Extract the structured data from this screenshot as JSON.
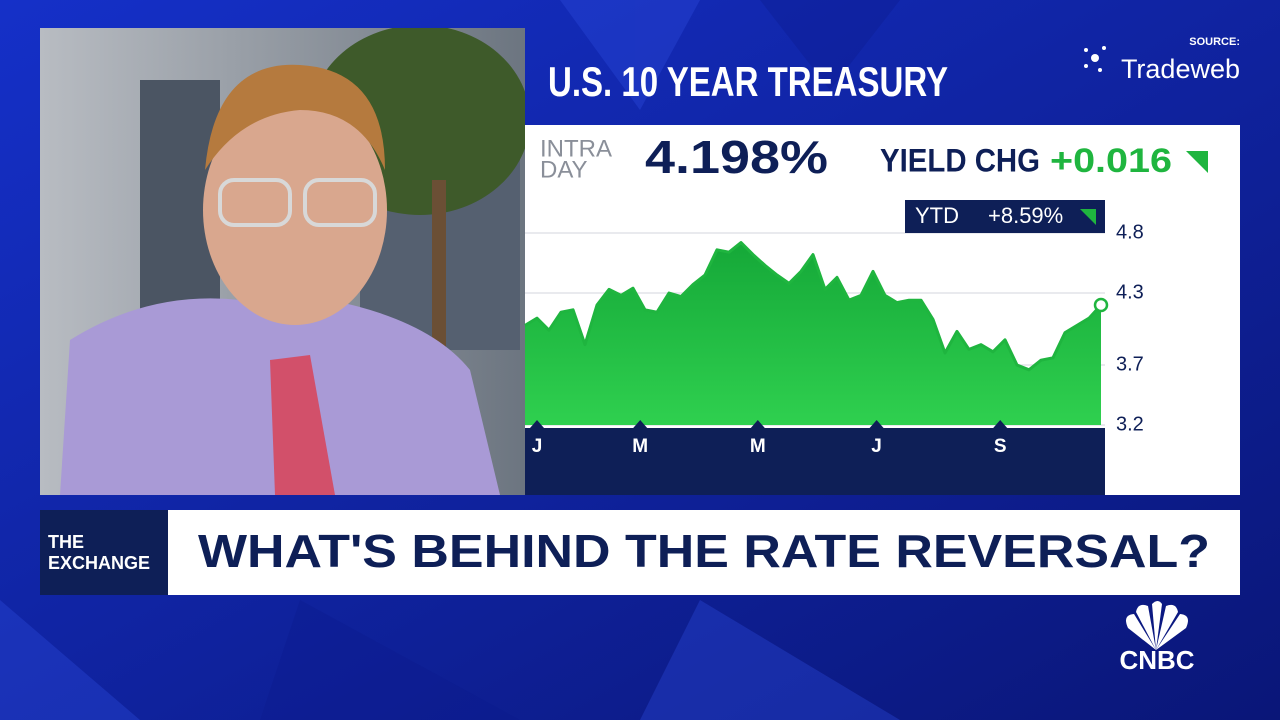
{
  "overlay": {
    "source_label": "SOURCE:",
    "source_name": "Tradeweb",
    "headline": "U.S. 10 YEAR TREASURY",
    "intraday_line1": "INTRA",
    "intraday_line2": "DAY",
    "yield": "4.198%",
    "yield_chg_label": "YIELD CHG",
    "yield_chg": "+0.016",
    "ytd_label": "YTD",
    "ytd_value": "+8.59%",
    "show_line1": "THE",
    "show_line2": "EXCHANGE",
    "lower_third": "WHAT'S BEHIND THE RATE REVERSAL?",
    "network": "CNBC"
  },
  "chart_data": {
    "type": "area",
    "color": "#1fb53f",
    "x": [
      0,
      1,
      2,
      3,
      4,
      5,
      6,
      7,
      8,
      9,
      10,
      11,
      12,
      13,
      14,
      15,
      16,
      17,
      18,
      19,
      20,
      21,
      22,
      23,
      24,
      25,
      26,
      27,
      28,
      29,
      30,
      31,
      32,
      33,
      34,
      35,
      36,
      37,
      38,
      39,
      40,
      41,
      42,
      43,
      44,
      45,
      46,
      47,
      48
    ],
    "values": [
      4.03,
      4.09,
      3.99,
      4.14,
      4.16,
      3.87,
      4.2,
      4.33,
      4.28,
      4.34,
      4.16,
      4.14,
      4.3,
      4.27,
      4.37,
      4.45,
      4.66,
      4.64,
      4.72,
      4.62,
      4.53,
      4.45,
      4.38,
      4.48,
      4.62,
      4.33,
      4.43,
      4.24,
      4.28,
      4.48,
      4.28,
      4.22,
      4.24,
      4.24,
      4.08,
      3.8,
      3.98,
      3.83,
      3.87,
      3.81,
      3.91,
      3.7,
      3.66,
      3.74,
      3.76,
      3.97,
      4.03,
      4.09,
      4.2
    ],
    "xlim": [
      0,
      48
    ],
    "xticks": [
      {
        "value": 1,
        "label": "J"
      },
      {
        "value": 9.6,
        "label": "M"
      },
      {
        "value": 19.4,
        "label": "M"
      },
      {
        "value": 29.3,
        "label": "J"
      },
      {
        "value": 39.6,
        "label": "S"
      }
    ],
    "ylim": [
      3.2,
      4.8
    ],
    "yticks": [
      3.2,
      3.7,
      4.3,
      4.8
    ],
    "grid": true
  }
}
